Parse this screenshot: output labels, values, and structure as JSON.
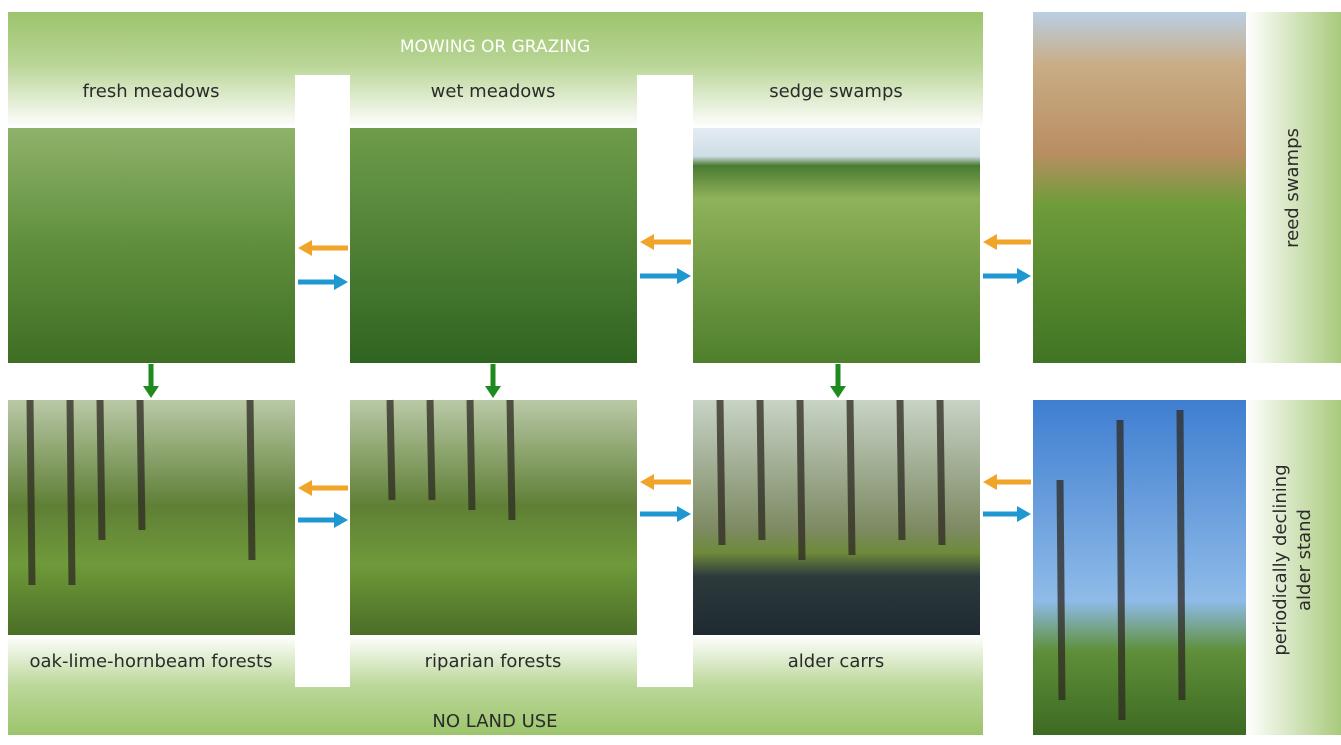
{
  "top_band": "MOWING OR GRAZING",
  "bottom_band": "NO LAND USE",
  "upper_row": [
    "fresh meadows",
    "wet meadows",
    "sedge swamps"
  ],
  "lower_row": [
    "oak-lime-hornbeam forests",
    "riparian forests",
    "alder carrs"
  ],
  "side_labels": [
    {
      "lines": [
        "reed swamps"
      ]
    },
    {
      "lines": [
        "periodically declining",
        "alder stand"
      ]
    }
  ]
}
